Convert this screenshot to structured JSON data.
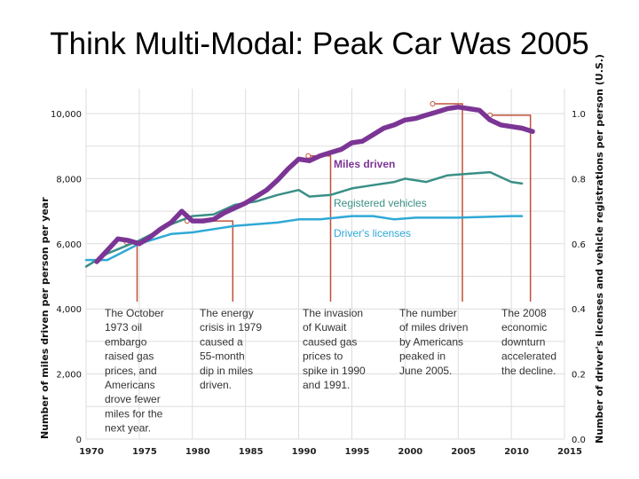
{
  "slide": {
    "title": "Think Multi-Modal: Peak Car Was 2005"
  },
  "chart_data": {
    "type": "line",
    "title": "",
    "xlabel": "",
    "ylabel": "Number of miles driven per person per year",
    "ylabel_right": "Number of driver's licenses and vehicle registrations per person (U.S.)",
    "xlim": [
      1970,
      2015
    ],
    "ylim": [
      0,
      10000
    ],
    "ylim_right": [
      0,
      1.0
    ],
    "x_ticks": [
      "1970",
      "1975",
      "1980",
      "1985",
      "1990",
      "1995",
      "2000",
      "2005",
      "2010",
      "2015"
    ],
    "y_ticks": [
      "0",
      "2,000",
      "4,000",
      "6,000",
      "8,000",
      "10,000"
    ],
    "y_ticks_right": [
      "0.0",
      "0.2",
      "0.4",
      "0.6",
      "0.8",
      "1.0"
    ],
    "grid": true,
    "series": [
      {
        "name": "Miles driven",
        "axis": "left",
        "color": "#7b3595",
        "x": [
          1971,
          1972,
          1973,
          1974,
          1975,
          1976,
          1977,
          1978,
          1979,
          1980,
          1981,
          1982,
          1983,
          1984,
          1985,
          1986,
          1987,
          1988,
          1989,
          1990,
          1991,
          1992,
          1993,
          1994,
          1995,
          1996,
          1997,
          1998,
          1999,
          2000,
          2001,
          2002,
          2003,
          2004,
          2005,
          2006,
          2007,
          2008,
          2009,
          2010,
          2011,
          2012
        ],
        "y": [
          5450,
          5800,
          6150,
          6100,
          6000,
          6200,
          6450,
          6650,
          7000,
          6700,
          6700,
          6750,
          6950,
          7100,
          7250,
          7450,
          7650,
          7950,
          8300,
          8600,
          8550,
          8700,
          8800,
          8900,
          9100,
          9150,
          9350,
          9550,
          9650,
          9800,
          9850,
          9950,
          10050,
          10150,
          10200,
          10150,
          10100,
          9800,
          9650,
          9600,
          9550,
          9450
        ]
      },
      {
        "name": "Registered vehicles",
        "axis": "right",
        "color": "#3a8f86",
        "x": [
          1970,
          1972,
          1975,
          1978,
          1980,
          1982,
          1984,
          1986,
          1988,
          1990,
          1991,
          1993,
          1995,
          1997,
          1999,
          2000,
          2002,
          2004,
          2006,
          2008,
          2010,
          2011
        ],
        "y": [
          0.53,
          0.57,
          0.61,
          0.66,
          0.685,
          0.69,
          0.72,
          0.73,
          0.75,
          0.765,
          0.745,
          0.75,
          0.77,
          0.78,
          0.79,
          0.8,
          0.79,
          0.81,
          0.815,
          0.82,
          0.79,
          0.785
        ]
      },
      {
        "name": "Driver's licenses",
        "axis": "right",
        "color": "#2fa9d6",
        "x": [
          1970,
          1972,
          1975,
          1978,
          1980,
          1982,
          1984,
          1986,
          1988,
          1990,
          1992,
          1995,
          1997,
          1999,
          2001,
          2005,
          2010,
          2011
        ],
        "y": [
          0.55,
          0.55,
          0.6,
          0.63,
          0.635,
          0.645,
          0.655,
          0.66,
          0.665,
          0.675,
          0.675,
          0.685,
          0.685,
          0.675,
          0.68,
          0.68,
          0.685,
          0.685
        ]
      }
    ],
    "annotations": [
      {
        "text": [
          "The October",
          "1973 oil",
          "embargo",
          "raised gas",
          "prices, and",
          "Americans",
          "drove fewer",
          "miles for the",
          "next year."
        ],
        "from": 1973.8,
        "to": 1974.8,
        "value": 6050
      },
      {
        "text": [
          "The energy",
          "crisis in 1979",
          "caused a",
          "55-month",
          "dip in miles",
          "driven."
        ],
        "from": 1979.5,
        "to": 1983.8,
        "value": 6700
      },
      {
        "text": [
          "The invasion",
          "of Kuwait",
          "caused gas",
          "prices to",
          "spike in 1990",
          "and 1991."
        ],
        "from": 1990.9,
        "to": 1993.0,
        "value": 8700
      },
      {
        "text": [
          "The number",
          "of miles driven",
          "by Americans",
          "peaked in",
          "June 2005."
        ],
        "from": 2002.6,
        "to": 2005.4,
        "value": 10300
      },
      {
        "text": [
          "The 2008",
          "economic",
          "downturn",
          "accelerated",
          "the decline."
        ],
        "from": 2008.0,
        "to": 2011.8,
        "value": 9950
      }
    ],
    "annotation_color": "#c0503a"
  }
}
